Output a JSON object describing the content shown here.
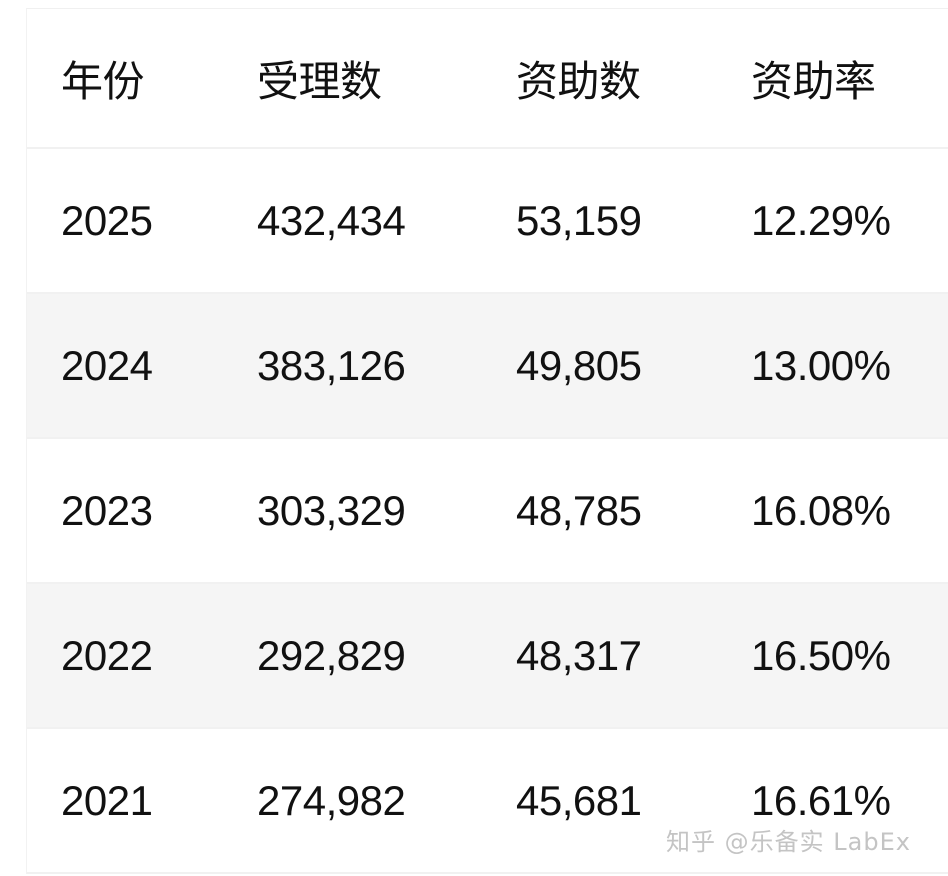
{
  "table": {
    "headers": [
      "年份",
      "受理数",
      "资助数",
      "资助率"
    ],
    "rows": [
      [
        "2025",
        "432,434",
        "53,159",
        "12.29%"
      ],
      [
        "2024",
        "383,126",
        "49,805",
        "13.00%"
      ],
      [
        "2023",
        "303,329",
        "48,785",
        "16.08%"
      ],
      [
        "2022",
        "292,829",
        "48,317",
        "16.50%"
      ],
      [
        "2021",
        "274,982",
        "45,681",
        "16.61%"
      ]
    ]
  },
  "watermark": "知乎 @乐备实 LabEx"
}
